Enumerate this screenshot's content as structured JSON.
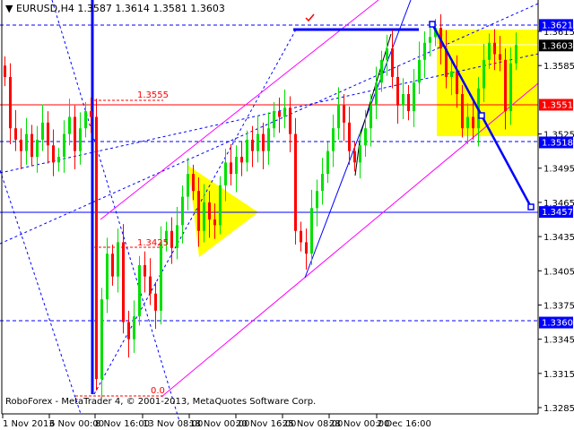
{
  "header": {
    "symbol": "EURUSD,H4",
    "open": "1.3587",
    "high": "1.3614",
    "low": "1.3581",
    "close": "1.3603"
  },
  "footer": {
    "copyright": "RoboForex - MetaTrader 4, © 2001-2013, MetaQuotes Software Corp."
  },
  "colors": {
    "bull": "#00e000",
    "bear": "#ff0000",
    "zone": "#ffff00",
    "line_blue": "#0000ff",
    "channel": "#ff00ff",
    "fib": "#ff0000"
  },
  "chart_data": {
    "type": "candlestick",
    "title": "EURUSD,H4",
    "ylim": [
      1.3275,
      1.3638
    ],
    "y_ticks": [
      "1.3615",
      "1.3585",
      "1.3525",
      "1.3495",
      "1.3465",
      "1.3435",
      "1.3405",
      "1.3375",
      "1.3345",
      "1.3315",
      "1.3285"
    ],
    "x_ticks": [
      "1 Nov 2013",
      "6 Nov 00:00",
      "8 Nov 16:00",
      "13 Nov 08:00",
      "18 Nov 00:00",
      "20 Nov 16:00",
      "25 Nov 08:00",
      "28 Nov 00:00",
      "2 Dec 16:00"
    ],
    "price_tags": [
      {
        "value": "1.3621",
        "style": "blue"
      },
      {
        "value": "1.3603",
        "style": "black"
      },
      {
        "value": "1.3551",
        "style": "red"
      },
      {
        "value": "1.3518",
        "style": "blue"
      },
      {
        "value": "1.3457",
        "style": "blue"
      },
      {
        "value": "1.3360",
        "style": "blue"
      }
    ],
    "fib_labels": [
      "1.3555",
      "1.3425",
      "0.0"
    ],
    "first_open": 1.3585,
    "last_bar": {
      "open": 1.3587,
      "high": 1.3614,
      "low": 1.3581,
      "close": 1.3603
    },
    "closes": [
      1.3575,
      1.353,
      1.352,
      1.351,
      1.3525,
      1.3505,
      1.352,
      1.3535,
      1.3515,
      1.35,
      1.3505,
      1.3525,
      1.354,
      1.351,
      1.353,
      1.3545,
      1.354,
      1.331,
      1.338,
      1.342,
      1.34,
      1.343,
      1.336,
      1.3345,
      1.3365,
      1.341,
      1.34,
      1.3385,
      1.337,
      1.343,
      1.344,
      1.3425,
      1.3445,
      1.347,
      1.349,
      1.3475,
      1.344,
      1.3465,
      1.345,
      1.3445,
      1.348,
      1.35,
      1.349,
      1.3505,
      1.35,
      1.352,
      1.351,
      1.3525,
      1.351,
      1.353,
      1.3545,
      1.354,
      1.3548,
      1.3525,
      1.344,
      1.343,
      1.342,
      1.346,
      1.3475,
      1.349,
      1.351,
      1.353,
      1.355,
      1.3535,
      1.351,
      1.35,
      1.3515,
      1.353,
      1.355,
      1.357,
      1.359,
      1.36,
      1.3575,
      1.355,
      1.356,
      1.3545,
      1.357,
      1.359,
      1.3605,
      1.361,
      1.3618,
      1.36,
      1.3575,
      1.358,
      1.356,
      1.353,
      1.354,
      1.353,
      1.3565,
      1.359,
      1.3605,
      1.3595,
      1.359,
      1.3545,
      1.3587,
      1.3603
    ]
  }
}
